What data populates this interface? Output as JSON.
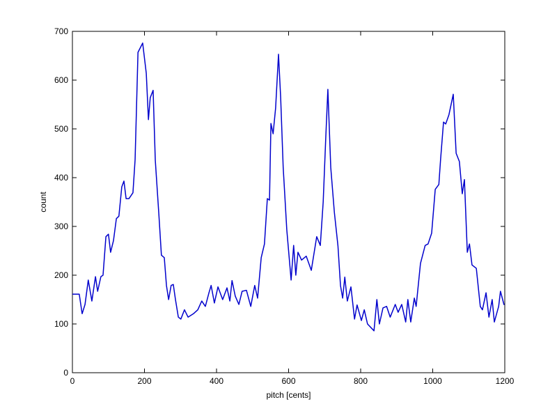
{
  "chart_data": {
    "type": "line",
    "xlabel": "pitch [cents]",
    "ylabel": "count",
    "xlim": [
      0,
      1200
    ],
    "ylim": [
      0,
      700
    ],
    "xticks": [
      0,
      200,
      400,
      600,
      800,
      1000,
      1200
    ],
    "yticks": [
      0,
      100,
      200,
      300,
      400,
      500,
      600,
      700
    ],
    "series": [
      {
        "color": "#0000cc",
        "x": [
          0,
          19,
          27,
          35,
          44,
          54,
          64,
          70,
          79,
          85,
          93,
          100,
          106,
          114,
          122,
          129,
          137,
          143,
          149,
          157,
          168,
          174,
          182,
          195,
          205,
          211,
          216,
          224,
          230,
          240,
          247,
          255,
          261,
          267,
          274,
          280,
          286,
          294,
          301,
          311,
          321,
          336,
          348,
          359,
          369,
          379,
          385,
          394,
          404,
          417,
          429,
          437,
          443,
          452,
          462,
          471,
          483,
          495,
          506,
          514,
          524,
          533,
          541,
          547,
          551,
          557,
          564,
          572,
          578,
          585,
          595,
          607,
          614,
          620,
          626,
          636,
          649,
          663,
          678,
          688,
          696,
          703,
          709,
          717,
          727,
          737,
          744,
          750,
          756,
          763,
          773,
          783,
          790,
          802,
          810,
          819,
          837,
          845,
          852,
          862,
          872,
          882,
          896,
          904,
          914,
          925,
          931,
          939,
          949,
          954,
          966,
          979,
          987,
          997,
          1007,
          1017,
          1022,
          1030,
          1036,
          1045,
          1057,
          1065,
          1074,
          1082,
          1088,
          1096,
          1102,
          1109,
          1121,
          1132,
          1138,
          1148,
          1156,
          1165,
          1171,
          1183,
          1188,
          1198
        ],
        "values": [
          161,
          161,
          121,
          140,
          190,
          147,
          197,
          167,
          197,
          200,
          279,
          284,
          247,
          271,
          316,
          321,
          381,
          393,
          357,
          357,
          369,
          437,
          657,
          676,
          614,
          519,
          564,
          579,
          436,
          324,
          241,
          236,
          179,
          150,
          179,
          181,
          150,
          114,
          110,
          129,
          114,
          121,
          129,
          147,
          136,
          164,
          179,
          143,
          176,
          150,
          174,
          147,
          189,
          157,
          140,
          167,
          169,
          136,
          179,
          153,
          236,
          264,
          357,
          354,
          511,
          490,
          543,
          653,
          564,
          421,
          293,
          190,
          261,
          200,
          247,
          231,
          239,
          210,
          279,
          261,
          350,
          479,
          581,
          421,
          329,
          260,
          179,
          153,
          196,
          147,
          176,
          110,
          139,
          107,
          129,
          100,
          86,
          150,
          100,
          133,
          136,
          114,
          140,
          124,
          140,
          104,
          150,
          104,
          153,
          136,
          224,
          261,
          264,
          286,
          376,
          386,
          439,
          514,
          510,
          529,
          571,
          450,
          433,
          367,
          396,
          247,
          264,
          221,
          214,
          136,
          129,
          164,
          114,
          150,
          104,
          136,
          167,
          139
        ]
      }
    ]
  }
}
